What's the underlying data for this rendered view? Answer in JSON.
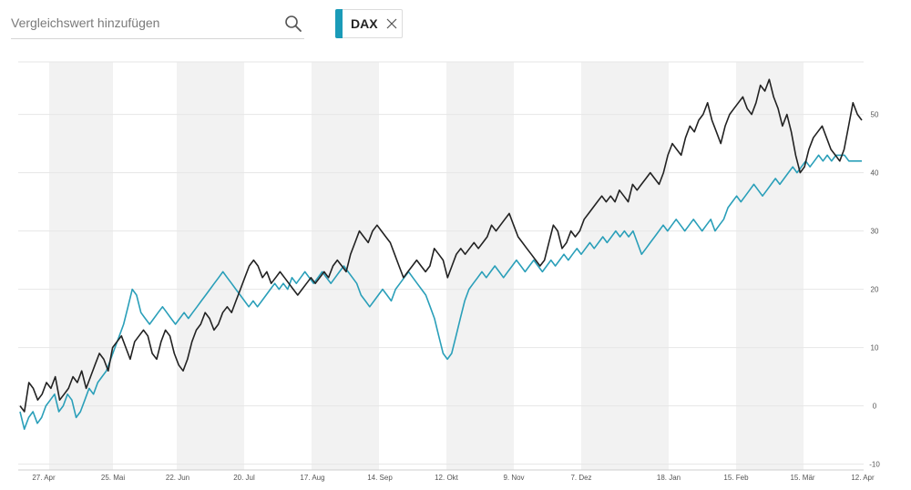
{
  "search": {
    "placeholder": "Vergleichswert hinzufügen"
  },
  "chip": {
    "label": "DAX",
    "color": "#1a9bb8"
  },
  "colors": {
    "primary_line": "#222222",
    "compare_line": "#2a9fb9",
    "band": "#f2f2f2",
    "grid": "#e6e6e6"
  },
  "chart_data": {
    "type": "line",
    "x_tick_labels": [
      "27. Apr",
      "25. Mai",
      "22. Jun",
      "20. Jul",
      "17. Aug",
      "14. Sep",
      "12. Okt",
      "9. Nov",
      "7. Dez",
      "18. Jan",
      "15. Feb",
      "15. Mär",
      "12. Apr"
    ],
    "y_ticks": [
      -10,
      0,
      10,
      20,
      30,
      40,
      50
    ],
    "ylim": [
      -11,
      59
    ],
    "grid": "horizontal",
    "shaded_bands": "alternating months",
    "series": [
      {
        "color": "#222222",
        "values": [
          0,
          -1,
          4,
          3,
          1,
          2,
          4,
          3,
          5,
          1,
          2,
          3,
          5,
          4,
          6,
          3,
          5,
          7,
          9,
          8,
          6,
          10,
          11,
          12,
          10,
          8,
          11,
          12,
          13,
          12,
          9,
          8,
          11,
          13,
          12,
          9,
          7,
          6,
          8,
          11,
          13,
          14,
          16,
          15,
          13,
          14,
          16,
          17,
          16,
          18,
          20,
          22,
          24,
          25,
          24,
          22,
          23,
          21,
          22,
          23,
          22,
          21,
          20,
          19,
          20,
          21,
          22,
          21,
          22,
          23,
          22,
          24,
          25,
          24,
          23,
          26,
          28,
          30,
          29,
          28,
          30,
          31,
          30,
          29,
          28,
          26,
          24,
          22,
          23,
          24,
          25,
          24,
          23,
          24,
          27,
          26,
          25,
          22,
          24,
          26,
          27,
          26,
          27,
          28,
          27,
          28,
          29,
          31,
          30,
          31,
          32,
          33,
          31,
          29,
          28,
          27,
          26,
          25,
          24,
          25,
          28,
          31,
          30,
          27,
          28,
          30,
          29,
          30,
          32,
          33,
          34,
          35,
          36,
          35,
          36,
          35,
          37,
          36,
          35,
          38,
          37,
          38,
          39,
          40,
          39,
          38,
          40,
          43,
          45,
          44,
          43,
          46,
          48,
          47,
          49,
          50,
          52,
          49,
          47,
          45,
          48,
          50,
          51,
          52,
          53,
          51,
          50,
          52,
          55,
          54,
          56,
          53,
          51,
          48,
          50,
          47,
          43,
          40,
          41,
          44,
          46,
          47,
          48,
          46,
          44,
          43,
          42,
          44,
          48,
          52,
          50,
          49
        ]
      },
      {
        "color": "#2a9fb9",
        "values": [
          -1,
          -4,
          -2,
          -1,
          -3,
          -2,
          0,
          1,
          2,
          -1,
          0,
          2,
          1,
          -2,
          -1,
          1,
          3,
          2,
          4,
          5,
          6,
          8,
          10,
          12,
          14,
          17,
          20,
          19,
          16,
          15,
          14,
          15,
          16,
          17,
          16,
          15,
          14,
          15,
          16,
          15,
          16,
          17,
          18,
          19,
          20,
          21,
          22,
          23,
          22,
          21,
          20,
          19,
          18,
          17,
          18,
          17,
          18,
          19,
          20,
          21,
          20,
          21,
          20,
          22,
          21,
          22,
          23,
          22,
          21,
          22,
          23,
          22,
          21,
          22,
          23,
          24,
          23,
          22,
          21,
          19,
          18,
          17,
          18,
          19,
          20,
          19,
          18,
          20,
          21,
          22,
          23,
          22,
          21,
          20,
          19,
          17,
          15,
          12,
          9,
          8,
          9,
          12,
          15,
          18,
          20,
          21,
          22,
          23,
          22,
          23,
          24,
          23,
          22,
          23,
          24,
          25,
          24,
          23,
          24,
          25,
          24,
          23,
          24,
          25,
          24,
          25,
          26,
          25,
          26,
          27,
          26,
          27,
          28,
          27,
          28,
          29,
          28,
          29,
          30,
          29,
          30,
          29,
          30,
          28,
          26,
          27,
          28,
          29,
          30,
          31,
          30,
          31,
          32,
          31,
          30,
          31,
          32,
          31,
          30,
          31,
          32,
          30,
          31,
          32,
          34,
          35,
          36,
          35,
          36,
          37,
          38,
          37,
          36,
          37,
          38,
          39,
          38,
          39,
          40,
          41,
          40,
          41,
          42,
          41,
          42,
          43,
          42,
          43,
          42,
          43,
          43,
          43,
          42,
          42,
          42,
          42
        ]
      }
    ]
  }
}
